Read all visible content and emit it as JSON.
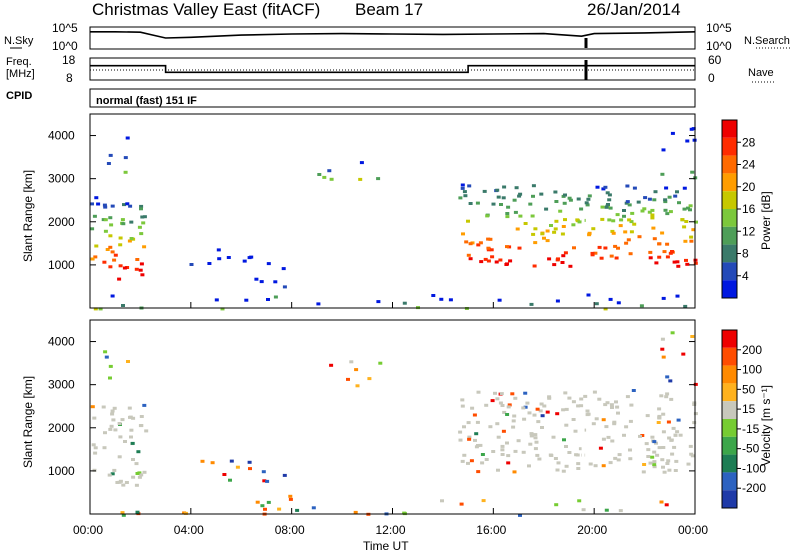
{
  "header": {
    "station": "Christmas Valley East (fitACF)",
    "beam": "Beam 17",
    "date": "26/Jan/2014",
    "mode": "normal (fast) 151 IF"
  },
  "labels": {
    "nsky": "N.Sky",
    "nsearch": "N.Search",
    "freq_line1": "Freq.",
    "freq_line2": "[MHz]",
    "nave": "Nave",
    "cpid": "CPID"
  },
  "chart_data": [
    {
      "type": "line",
      "title": "",
      "ylabel": "N.Sky / N.Search",
      "yticks_left": [
        "10^5",
        "10^0"
      ],
      "yticks_right": [
        "10^5",
        "10^0"
      ],
      "scale": "log",
      "series": [
        {
          "name": "N.Sky",
          "x_hours": [
            0,
            1,
            2,
            2.5,
            3,
            4,
            6,
            8,
            10,
            12,
            14,
            16,
            18,
            19.5,
            20,
            22,
            24
          ],
          "level": [
            0.6,
            0.6,
            0.58,
            0.45,
            0.32,
            0.35,
            0.45,
            0.5,
            0.52,
            0.5,
            0.48,
            0.5,
            0.52,
            0.4,
            0.52,
            0.55,
            0.6
          ]
        },
        {
          "name": "N.Search",
          "note_style": "dotted"
        }
      ]
    },
    {
      "type": "line",
      "ylabel": "Freq. [MHz]",
      "yticks_left": [
        "18",
        "8"
      ],
      "yticks_right": [
        "60",
        "0"
      ],
      "series": [
        {
          "name": "Freq.",
          "x_hours": [
            0,
            3,
            3,
            15,
            15,
            24
          ],
          "y_mhz": [
            14.5,
            14.5,
            11.5,
            11.5,
            14.5,
            14.5
          ]
        },
        {
          "name": "Nave",
          "y_value": 15
        }
      ]
    },
    {
      "type": "heatmap",
      "xlabel": "",
      "ylabel": "Slant Range [km]",
      "ylim": [
        0,
        4500
      ],
      "xlim_hours": [
        0,
        24
      ],
      "y_ticks": [
        1000,
        2000,
        3000,
        4000
      ],
      "colorbar_label": "Power [dB]",
      "colorbar_ticks": [
        4,
        8,
        12,
        16,
        20,
        24,
        28
      ],
      "colorbar_range": [
        0,
        30
      ],
      "colors": [
        "#0018e0",
        "#244ab8",
        "#3a7a6a",
        "#4e9e58",
        "#7cc83c",
        "#c6c800",
        "#ff9d00",
        "#ff6a00",
        "#ff2c00",
        "#ee0000"
      ]
    },
    {
      "type": "heatmap",
      "xlabel": "Time UT",
      "ylabel": "Slant Range [km]",
      "ylim": [
        0,
        4500
      ],
      "xlim_hours": [
        0,
        24
      ],
      "y_ticks": [
        1000,
        2000,
        3000,
        4000
      ],
      "x_ticks": [
        "00:00",
        "04:00",
        "08:00",
        "12:00",
        "16:00",
        "20:00",
        "00:00"
      ],
      "colorbar_label": "Velocity [m s⁻¹]",
      "colorbar_ticks": [
        200,
        100,
        50,
        15,
        -15,
        -50,
        -100,
        -200
      ],
      "colors": [
        "#1f3aa8",
        "#2c62c0",
        "#1d7d54",
        "#3ca64a",
        "#76cc32",
        "#c8c8bc",
        "#ffb21e",
        "#ff8a00",
        "#ff4d00",
        "#ee0000"
      ]
    }
  ]
}
